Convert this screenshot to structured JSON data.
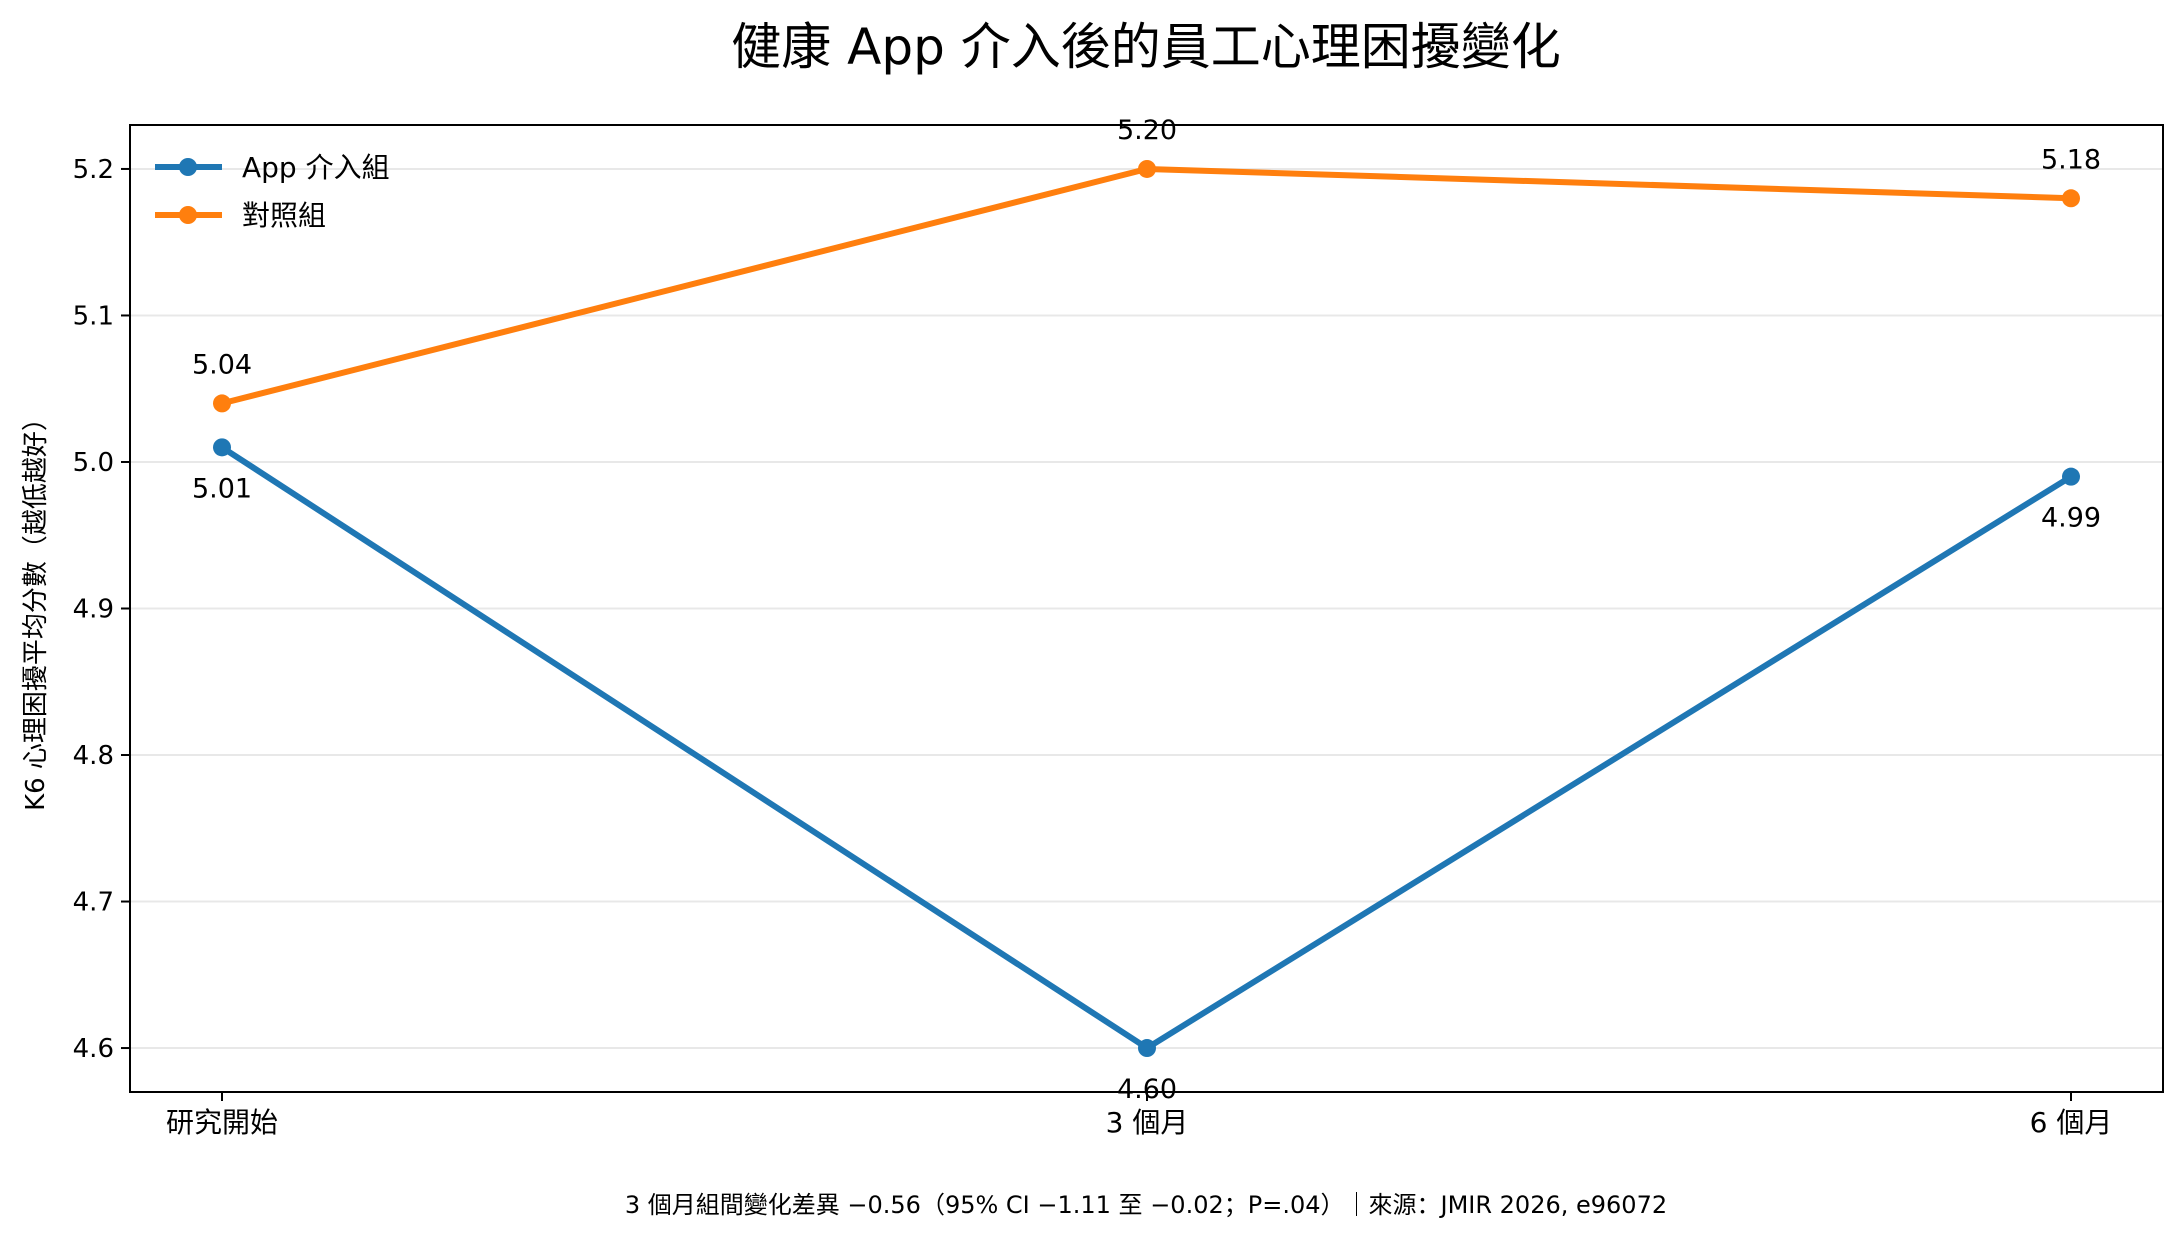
{
  "chart_data": {
    "type": "line",
    "title": "健康 App 介入後的員工心理困擾變化",
    "xlabel": "",
    "ylabel": "K6 心理困擾平均分數（越低越好）",
    "categories": [
      "研究開始",
      "3 個月",
      "6 個月"
    ],
    "ylim": [
      4.57,
      5.23
    ],
    "yticks": [
      "4.6",
      "4.7",
      "4.8",
      "4.9",
      "5.0",
      "5.1",
      "5.2"
    ],
    "grid": "horizontal",
    "legend_position": "top-left",
    "series": [
      {
        "name": "App 介入組",
        "color": "#1f77b4",
        "values": [
          5.01,
          4.6,
          4.99
        ],
        "labels": [
          "5.01",
          "4.60",
          "4.99"
        ],
        "label_side": "below"
      },
      {
        "name": "對照組",
        "color": "#ff7f0e",
        "values": [
          5.04,
          5.2,
          5.18
        ],
        "labels": [
          "5.04",
          "5.20",
          "5.18"
        ],
        "label_side": "above"
      }
    ],
    "footnote": "3 個月組間變化差異 −0.56（95% CI −1.11 至 −0.02；P=.04）｜來源：JMIR 2026, e96072"
  }
}
